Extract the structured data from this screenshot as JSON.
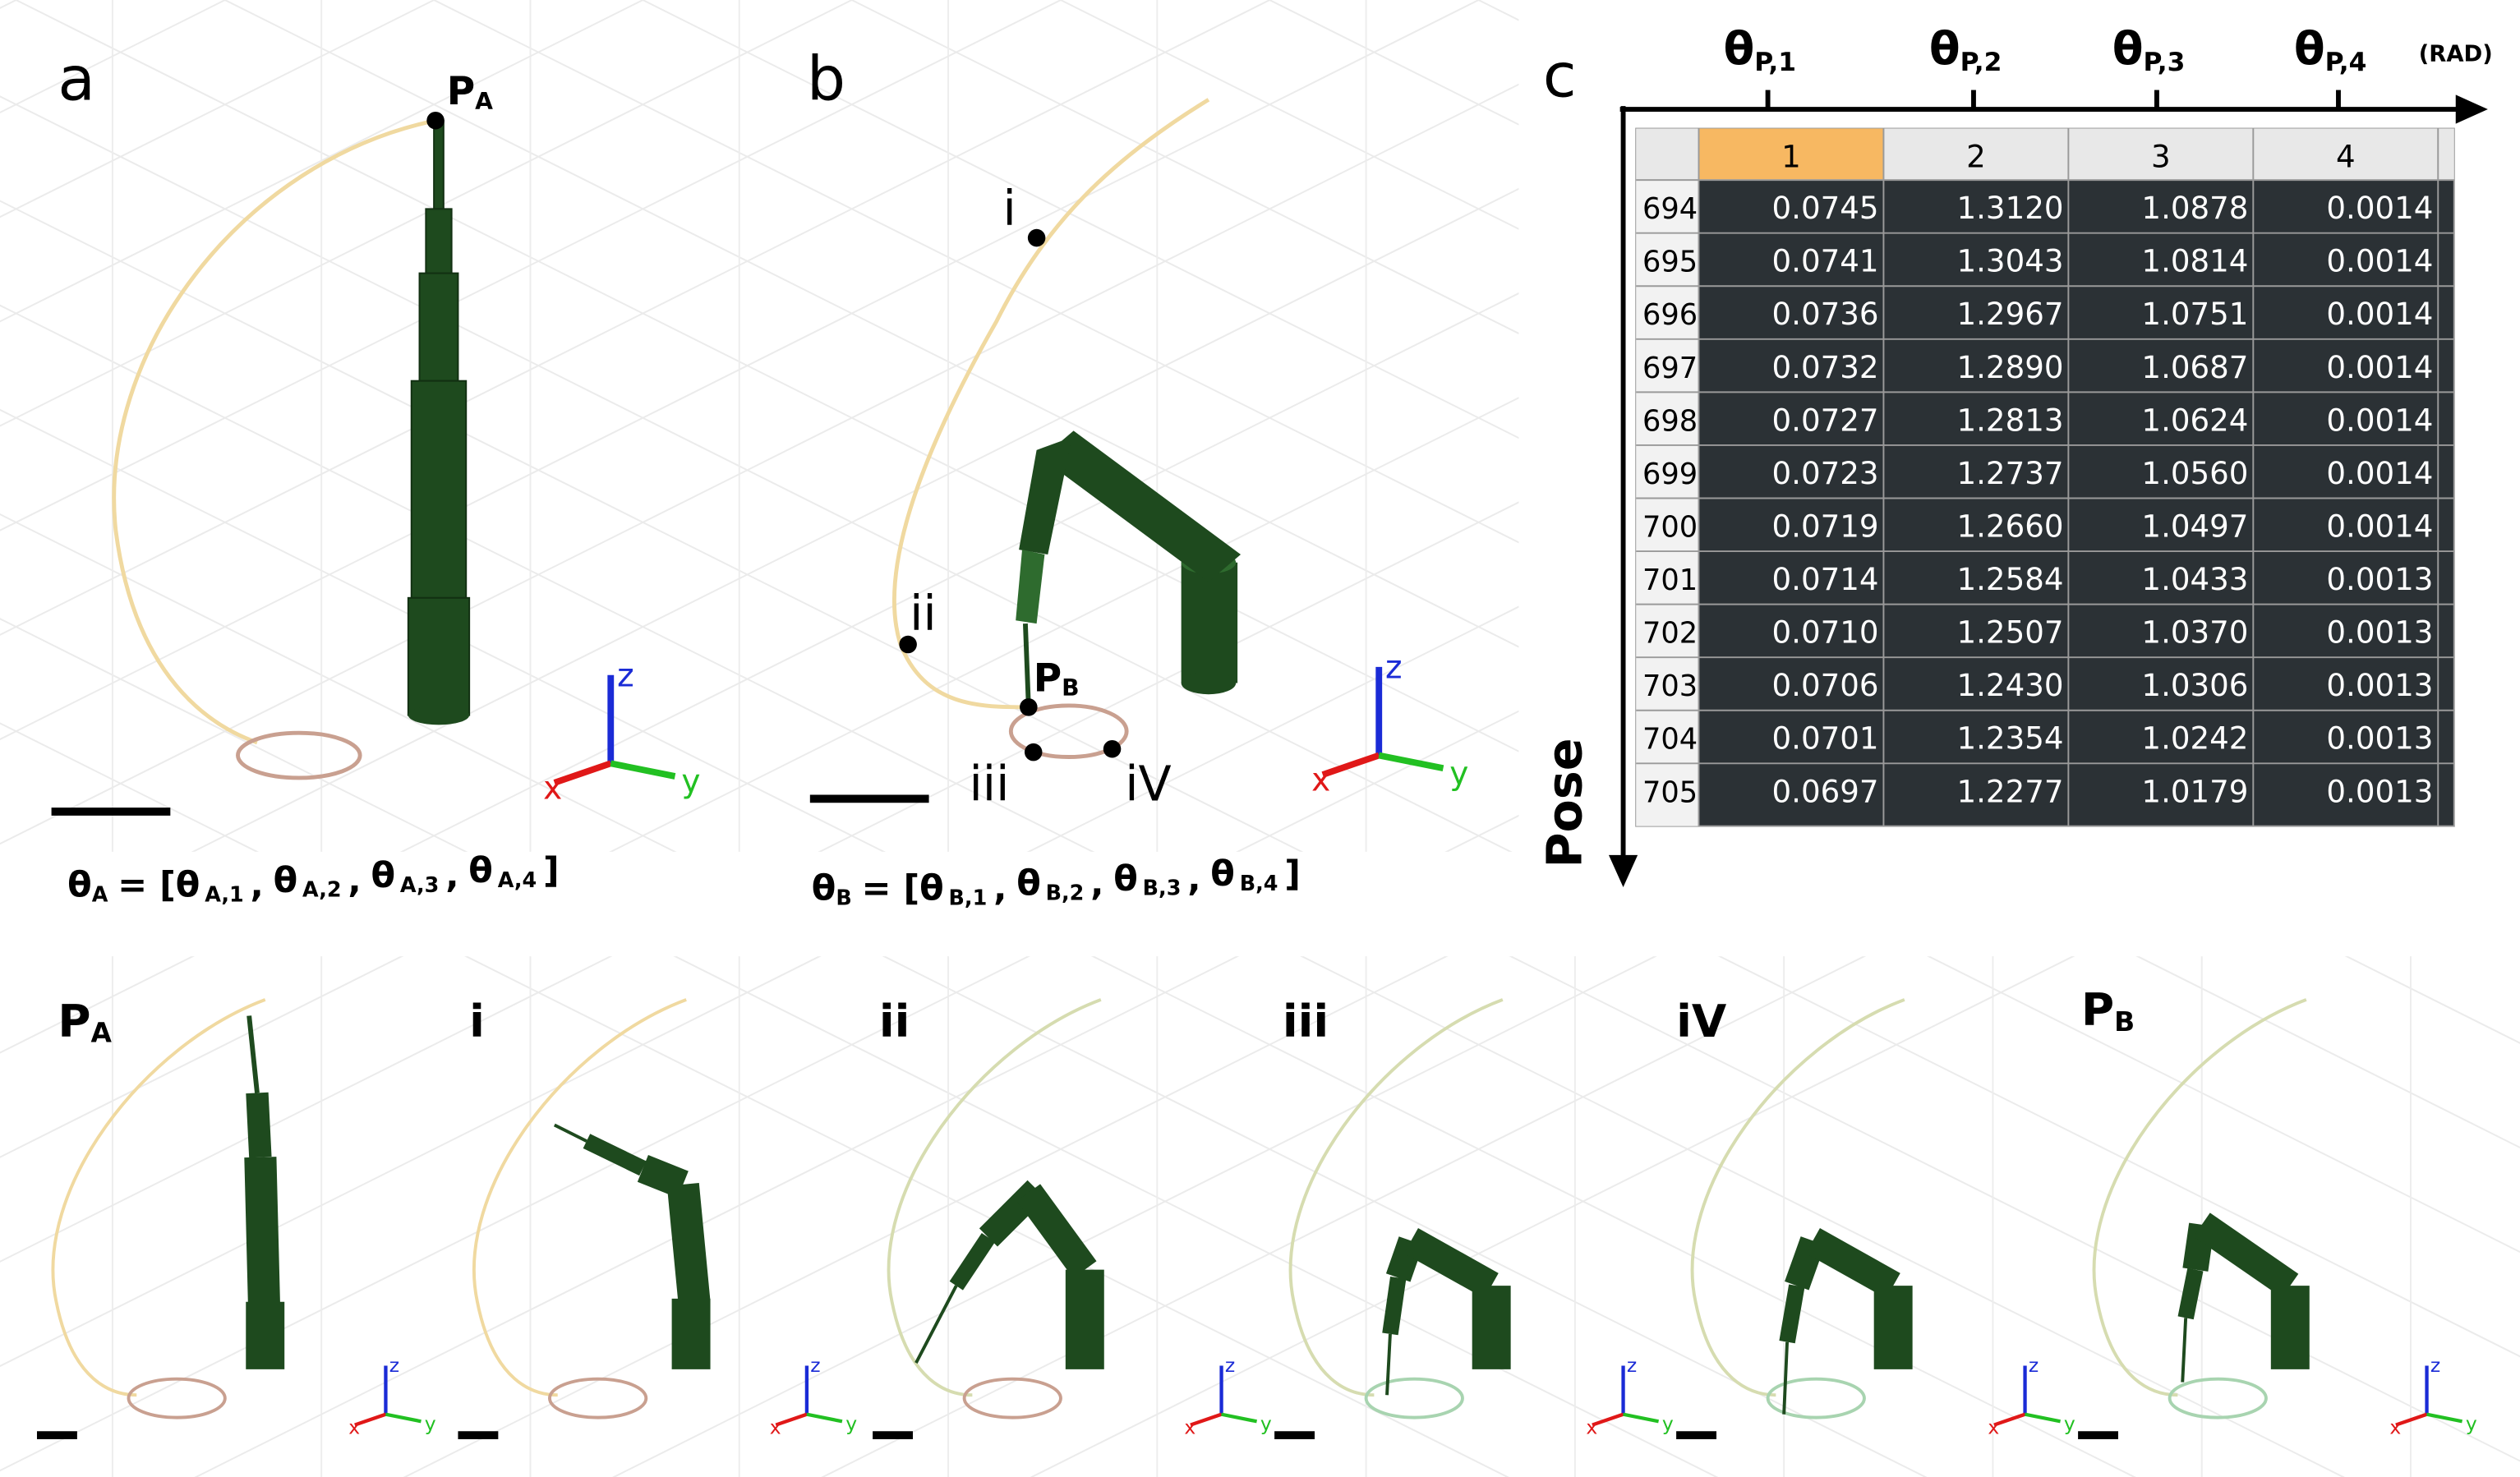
{
  "panel_a": {
    "label": "a",
    "point_label": {
      "text": "P",
      "sub": "A"
    },
    "equation": {
      "symbol": "θ",
      "sub": "A",
      "open": "= [",
      "terms": [
        "A,1",
        "A,2",
        "A,3",
        "A,4"
      ],
      "separator": ",",
      "close": "]"
    }
  },
  "panel_b": {
    "label": "b",
    "point_label": {
      "text": "P",
      "sub": "B"
    },
    "waypoints": [
      "i",
      "ii",
      "iii",
      "iV"
    ],
    "equation": {
      "symbol": "θ",
      "sub": "B",
      "open": "= [",
      "terms": [
        "B,1",
        "B,2",
        "B,3",
        "B,4"
      ],
      "separator": ",",
      "close": "]"
    }
  },
  "axis_triad": {
    "x": "x",
    "y": "y",
    "z": "z"
  },
  "panel_c": {
    "label": "c",
    "column_symbol": "θ",
    "column_subs": [
      "P,1",
      "P,2",
      "P,3",
      "P,4"
    ],
    "unit": "(RAD)",
    "row_axis": "Pose",
    "table": {
      "columns": [
        1,
        2,
        3,
        4
      ],
      "row_ids": [
        694,
        695,
        696,
        697,
        698,
        699,
        700,
        701,
        702,
        703,
        704,
        705
      ],
      "rows": [
        [
          "0.0745",
          "1.3120",
          "1.0878",
          "0.0014"
        ],
        [
          "0.0741",
          "1.3043",
          "1.0814",
          "0.0014"
        ],
        [
          "0.0736",
          "1.2967",
          "1.0751",
          "0.0014"
        ],
        [
          "0.0732",
          "1.2890",
          "1.0687",
          "0.0014"
        ],
        [
          "0.0727",
          "1.2813",
          "1.0624",
          "0.0014"
        ],
        [
          "0.0723",
          "1.2737",
          "1.0560",
          "0.0014"
        ],
        [
          "0.0719",
          "1.2660",
          "1.0497",
          "0.0014"
        ],
        [
          "0.0714",
          "1.2584",
          "1.0433",
          "0.0013"
        ],
        [
          "0.0710",
          "1.2507",
          "1.0370",
          "0.0013"
        ],
        [
          "0.0706",
          "1.2430",
          "1.0306",
          "0.0013"
        ],
        [
          "0.0701",
          "1.2354",
          "1.0242",
          "0.0013"
        ],
        [
          "0.0697",
          "1.2277",
          "1.0179",
          "0.0013"
        ]
      ]
    }
  },
  "sequence": [
    {
      "text": "P",
      "sub": "A"
    },
    {
      "text": "i"
    },
    {
      "text": "ii"
    },
    {
      "text": "iii"
    },
    {
      "text": "iV"
    },
    {
      "text": "P",
      "sub": "B"
    }
  ]
}
